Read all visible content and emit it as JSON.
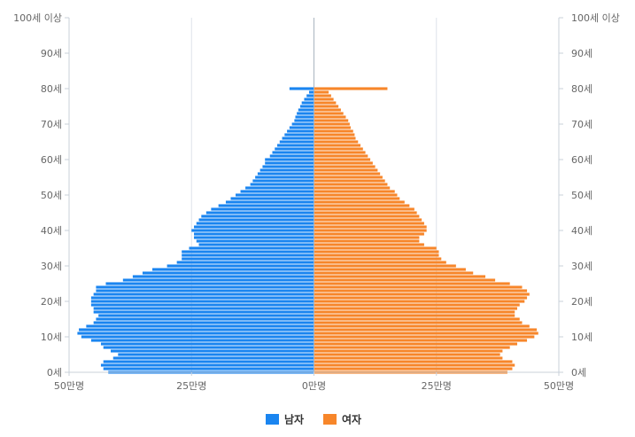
{
  "chart_data": {
    "type": "bar",
    "orientation": "horizontal-population-pyramid",
    "title": "",
    "xlabel": "",
    "ylabel": "",
    "unit": "만명",
    "xlim": [
      -50,
      50
    ],
    "ylim": [
      0,
      100
    ],
    "grid": true,
    "legend_position": "bottom-center",
    "x_ticks": [
      {
        "value": -50,
        "label": "50만명"
      },
      {
        "value": -25,
        "label": "25만명"
      },
      {
        "value": 0,
        "label": "0만명"
      },
      {
        "value": 25,
        "label": "25만명"
      },
      {
        "value": 50,
        "label": "50만명"
      }
    ],
    "y_ticks": [
      {
        "value": 0,
        "label": "0세"
      },
      {
        "value": 10,
        "label": "10세"
      },
      {
        "value": 20,
        "label": "20세"
      },
      {
        "value": 30,
        "label": "30세"
      },
      {
        "value": 40,
        "label": "40세"
      },
      {
        "value": 50,
        "label": "50세"
      },
      {
        "value": 60,
        "label": "60세"
      },
      {
        "value": 70,
        "label": "70세"
      },
      {
        "value": 80,
        "label": "80세"
      },
      {
        "value": 90,
        "label": "90세"
      },
      {
        "value": 100,
        "label": "100세 이상"
      }
    ],
    "ages": [
      0,
      1,
      2,
      3,
      4,
      5,
      6,
      7,
      8,
      9,
      10,
      11,
      12,
      13,
      14,
      15,
      16,
      17,
      18,
      19,
      20,
      21,
      22,
      23,
      24,
      25,
      26,
      27,
      28,
      29,
      30,
      31,
      32,
      33,
      34,
      35,
      36,
      37,
      38,
      39,
      40,
      41,
      42,
      43,
      44,
      45,
      46,
      47,
      48,
      49,
      50,
      51,
      52,
      53,
      54,
      55,
      56,
      57,
      58,
      59,
      60,
      61,
      62,
      63,
      64,
      65,
      66,
      67,
      68,
      69,
      70,
      71,
      72,
      73,
      74,
      75,
      76,
      77,
      78,
      79,
      80
    ],
    "series": [
      {
        "name": "남자",
        "color": "#1a85f0",
        "values": [
          42.0,
          43.0,
          43.5,
          43.0,
          41.0,
          40.0,
          41.5,
          43.0,
          43.5,
          45.5,
          47.5,
          48.3,
          48.0,
          46.5,
          45.0,
          44.5,
          44.0,
          45.0,
          45.0,
          45.5,
          45.5,
          45.5,
          45.0,
          44.5,
          44.5,
          42.5,
          39.0,
          37.0,
          35.0,
          33.0,
          30.0,
          28.0,
          27.0,
          27.0,
          27.0,
          25.5,
          23.5,
          24.0,
          24.5,
          24.5,
          25.0,
          24.5,
          24.0,
          23.5,
          23.0,
          22.0,
          21.0,
          19.5,
          18.0,
          17.0,
          16.0,
          15.0,
          14.0,
          13.0,
          12.5,
          12.0,
          11.5,
          11.0,
          10.5,
          10.0,
          10.0,
          9.0,
          8.5,
          8.0,
          7.5,
          7.0,
          6.5,
          6.0,
          5.5,
          5.0,
          4.5,
          4.0,
          3.8,
          3.5,
          3.2,
          2.8,
          2.5,
          2.0,
          1.5,
          1.0,
          5.0
        ]
      },
      {
        "name": "여자",
        "color": "#f7862a",
        "values": [
          39.5,
          40.5,
          41.0,
          40.5,
          38.5,
          38.0,
          38.5,
          40.0,
          41.5,
          43.5,
          45.0,
          45.8,
          45.5,
          44.0,
          42.5,
          42.0,
          41.0,
          41.0,
          41.5,
          42.0,
          43.0,
          43.5,
          44.0,
          43.5,
          42.5,
          40.0,
          37.0,
          35.0,
          32.5,
          31.0,
          29.0,
          27.0,
          26.0,
          25.5,
          25.5,
          25.0,
          22.5,
          21.5,
          21.5,
          22.5,
          23.0,
          23.0,
          22.5,
          22.0,
          21.5,
          21.0,
          20.5,
          19.5,
          18.5,
          17.5,
          17.0,
          16.5,
          15.5,
          15.0,
          14.5,
          14.0,
          13.5,
          13.0,
          12.5,
          12.0,
          11.5,
          11.0,
          10.5,
          10.0,
          9.5,
          9.0,
          8.5,
          8.3,
          8.0,
          7.5,
          7.3,
          7.0,
          6.5,
          6.0,
          5.5,
          5.0,
          4.5,
          4.0,
          3.5,
          3.0,
          15.0
        ]
      }
    ]
  }
}
